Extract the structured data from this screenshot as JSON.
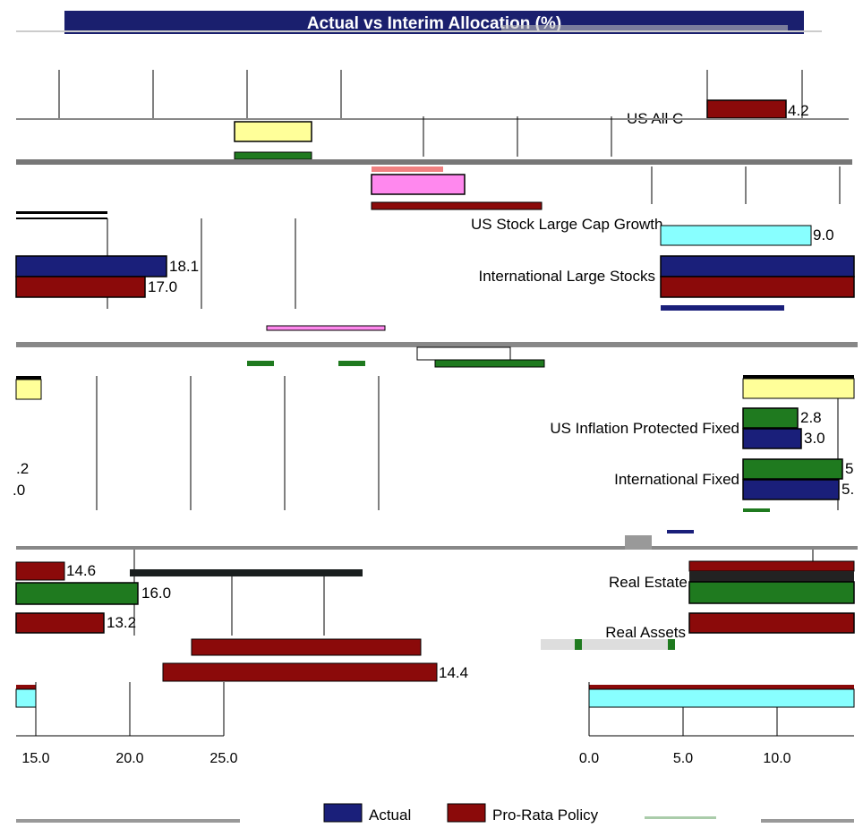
{
  "title": "Actual vs Interim Allocation (%)",
  "colors": {
    "actual": "#1a1f7a",
    "pro_rata": "#8b0a0a",
    "interim": "#1f7a1f",
    "yellow": "#ffff99",
    "cyan": "#88ffff",
    "pink": "#ff88ee",
    "band": "#888888"
  },
  "chart_data": {
    "type": "bar",
    "orientation": "horizontal",
    "title": "Actual vs Interim Allocation (%)",
    "series": [
      {
        "name": "Actual",
        "color": "#1a1f7a"
      },
      {
        "name": "Pro-Rata Policy",
        "color": "#8b0a0a"
      }
    ],
    "visible_labels": [
      "US Inflation Protected Fixed",
      "International Fixed",
      "International Large Stocks",
      "Real Assets"
    ],
    "bars": [
      {
        "category": "US Inflation Protected Fixed",
        "interim": 2.8,
        "actual": 3.0
      },
      {
        "category": "International Large Stocks",
        "actual": 18.1,
        "pro_rata": 17.0
      },
      {
        "category": "Real Assets",
        "pro_rata": 13.2
      },
      {
        "category": "",
        "pro_rata": 14.6
      },
      {
        "category": "",
        "pro_rata": 14.4
      },
      {
        "category": "",
        "pro_rata": 4.2
      }
    ],
    "x_ticks_left": [
      "15.0",
      "20.0",
      "25.0"
    ],
    "x_ticks_right": [
      "0.0",
      "5.0",
      "10.0"
    ],
    "legend": [
      "Actual",
      "Pro-Rata Policy"
    ],
    "legend_position": "bottom"
  },
  "fragments": {
    "v_4_2": "4.2",
    "v_18_1": "18.1",
    "v_17_0": "17.0",
    "v_2_8": "2.8",
    "v_3_0": "3.0",
    "v_5a": "5",
    "v_5b": "5.",
    "v_dot2": ".2",
    "v_dot0": ".0",
    "v_14_6": "14.6",
    "v_13_2": "13.2",
    "v_14_4": "14.4",
    "lbl_us_all": "US All C",
    "lbl_growth": "US Stock Large Cap Growth"
  }
}
